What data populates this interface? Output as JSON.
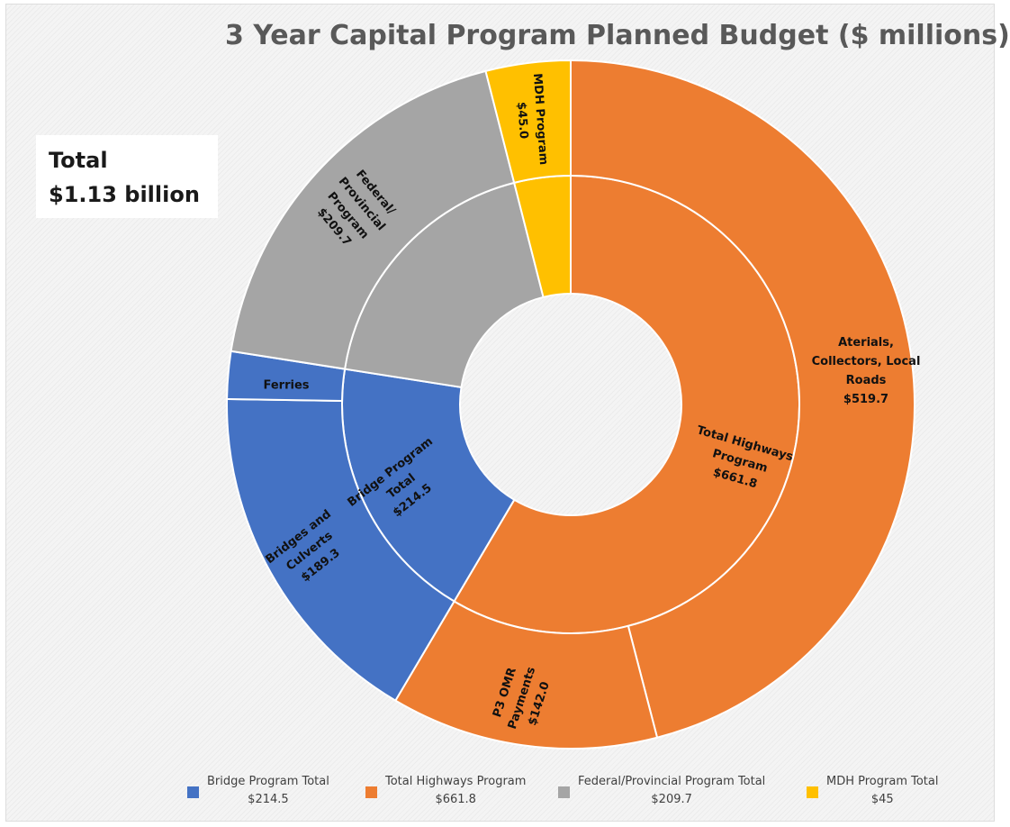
{
  "total_box": {
    "line1": "Total",
    "line2": "$1.13 billion"
  },
  "colors": {
    "bridge": "#4472C4",
    "highways": "#ED7D31",
    "federal": "#A5A5A5",
    "mdh": "#FFC000"
  },
  "chart_data": {
    "type": "sunburst",
    "title": "3 Year Capital Program Planned Budget ($ millions)",
    "inner_ring": [
      {
        "key": "highways",
        "label_lines": [
          "Total Highways",
          "Program",
          "$661.8"
        ],
        "value": 661.8
      },
      {
        "key": "bridge",
        "label_lines": [
          "Bridge Program",
          "Total",
          "$214.5"
        ],
        "value": 214.5
      },
      {
        "key": "federal",
        "label_lines": [],
        "value": 209.7
      },
      {
        "key": "mdh",
        "label_lines": [],
        "value": 45.0
      }
    ],
    "outer_ring": [
      {
        "key": "highways",
        "label_lines": [
          "Aterials,",
          "Collectors, Local",
          "Roads",
          "$519.7"
        ],
        "value": 519.7
      },
      {
        "key": "highways",
        "label_lines": [
          "P3 OMR",
          "Payments",
          "$142.0"
        ],
        "value": 142.0
      },
      {
        "key": "bridge",
        "label_lines": [
          "Bridges and",
          "Culverts",
          "$189.3"
        ],
        "value": 189.3
      },
      {
        "key": "bridge",
        "label_lines": [
          "Ferries"
        ],
        "value": 25.2
      },
      {
        "key": "federal",
        "label_lines": [
          "Federal/",
          "Provincial",
          "Program",
          "$209.7"
        ],
        "value": 209.7
      },
      {
        "key": "mdh",
        "label_lines": [
          "MDH Program",
          "$45.0"
        ],
        "value": 45.0
      }
    ],
    "legend": [
      {
        "key": "bridge",
        "name": "Bridge Program Total",
        "value": "$214.5"
      },
      {
        "key": "highways",
        "name": "Total Highways Program",
        "value": "$661.8"
      },
      {
        "key": "federal",
        "name": "Federal/Provincial Program Total",
        "value": "$209.7"
      },
      {
        "key": "mdh",
        "name": "MDH Program Total",
        "value": "$45"
      }
    ],
    "legend_position": "bottom"
  }
}
